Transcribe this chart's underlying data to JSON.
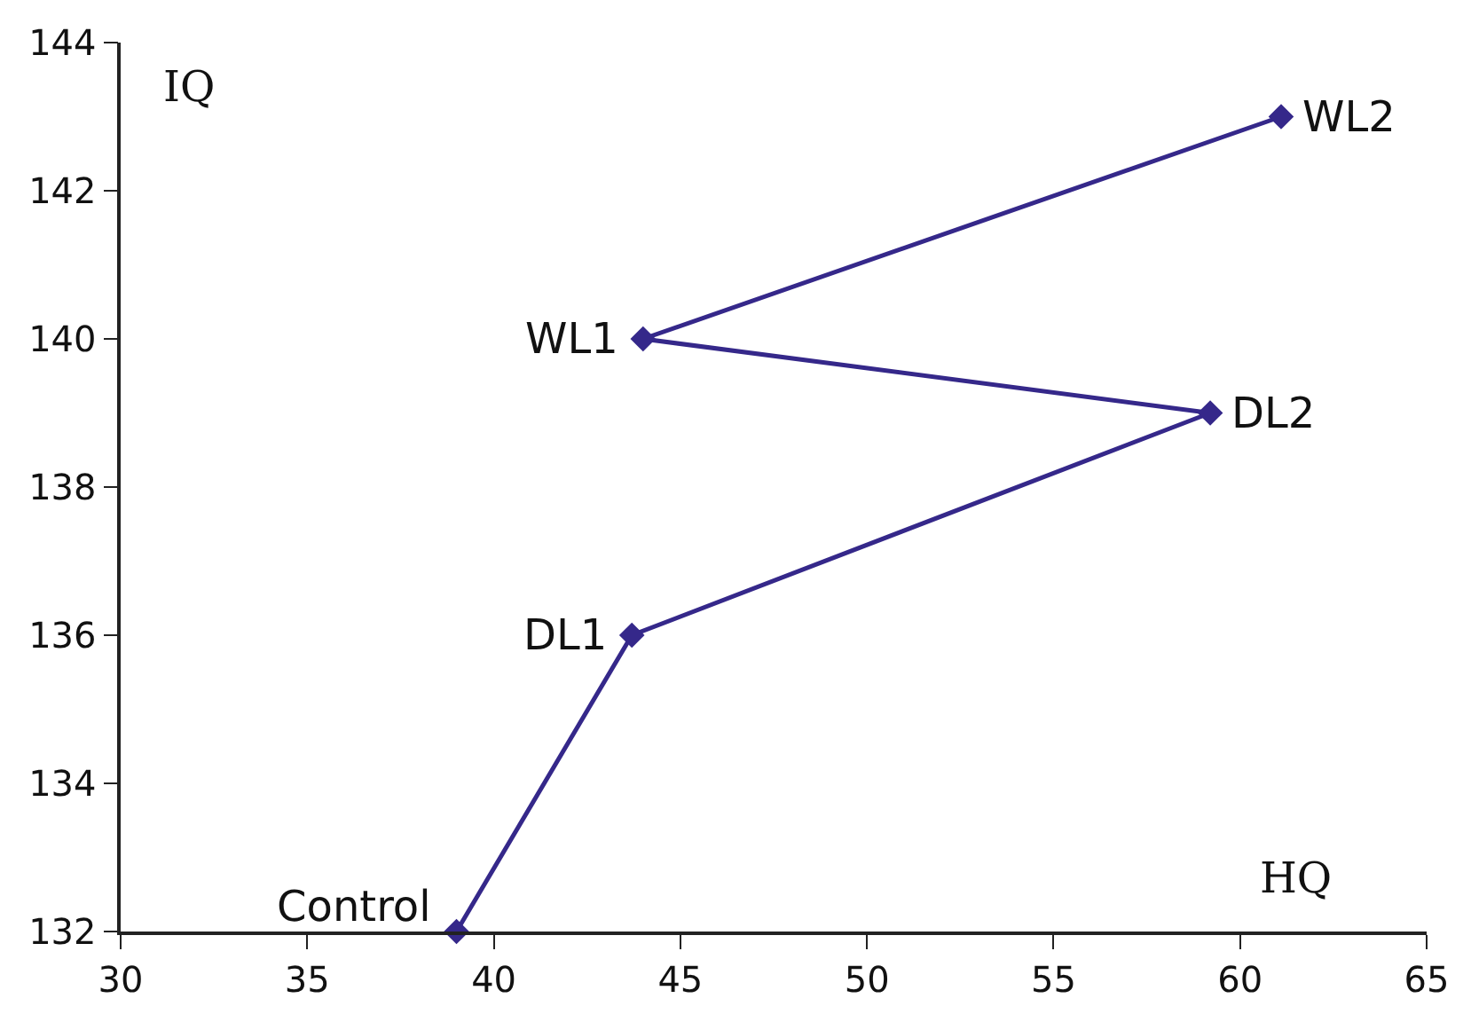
{
  "chart_data": {
    "type": "line",
    "xlabel": "HQ",
    "ylabel": "IQ",
    "x": [
      39.0,
      43.7,
      59.2,
      44.0,
      61.1
    ],
    "series": [
      {
        "color": "#35288a",
        "values": [
          132,
          136,
          139,
          140,
          143
        ]
      }
    ],
    "annotations": [
      {
        "text": "Control",
        "x": 39.0,
        "y": 132
      },
      {
        "text": "DL1",
        "x": 43.7,
        "y": 136
      },
      {
        "text": "DL2",
        "x": 59.2,
        "y": 139
      },
      {
        "text": "WL1",
        "x": 44.0,
        "y": 140
      },
      {
        "text": "WL2",
        "x": 61.1,
        "y": 143
      }
    ],
    "xlim": [
      30,
      65
    ],
    "xticks": [
      30,
      35,
      40,
      45,
      50,
      55,
      60,
      65
    ],
    "ylim": [
      132,
      144
    ],
    "yticks": [
      132,
      134,
      136,
      138,
      140,
      142,
      144
    ],
    "marker": "diamond",
    "line_style": "solid"
  }
}
